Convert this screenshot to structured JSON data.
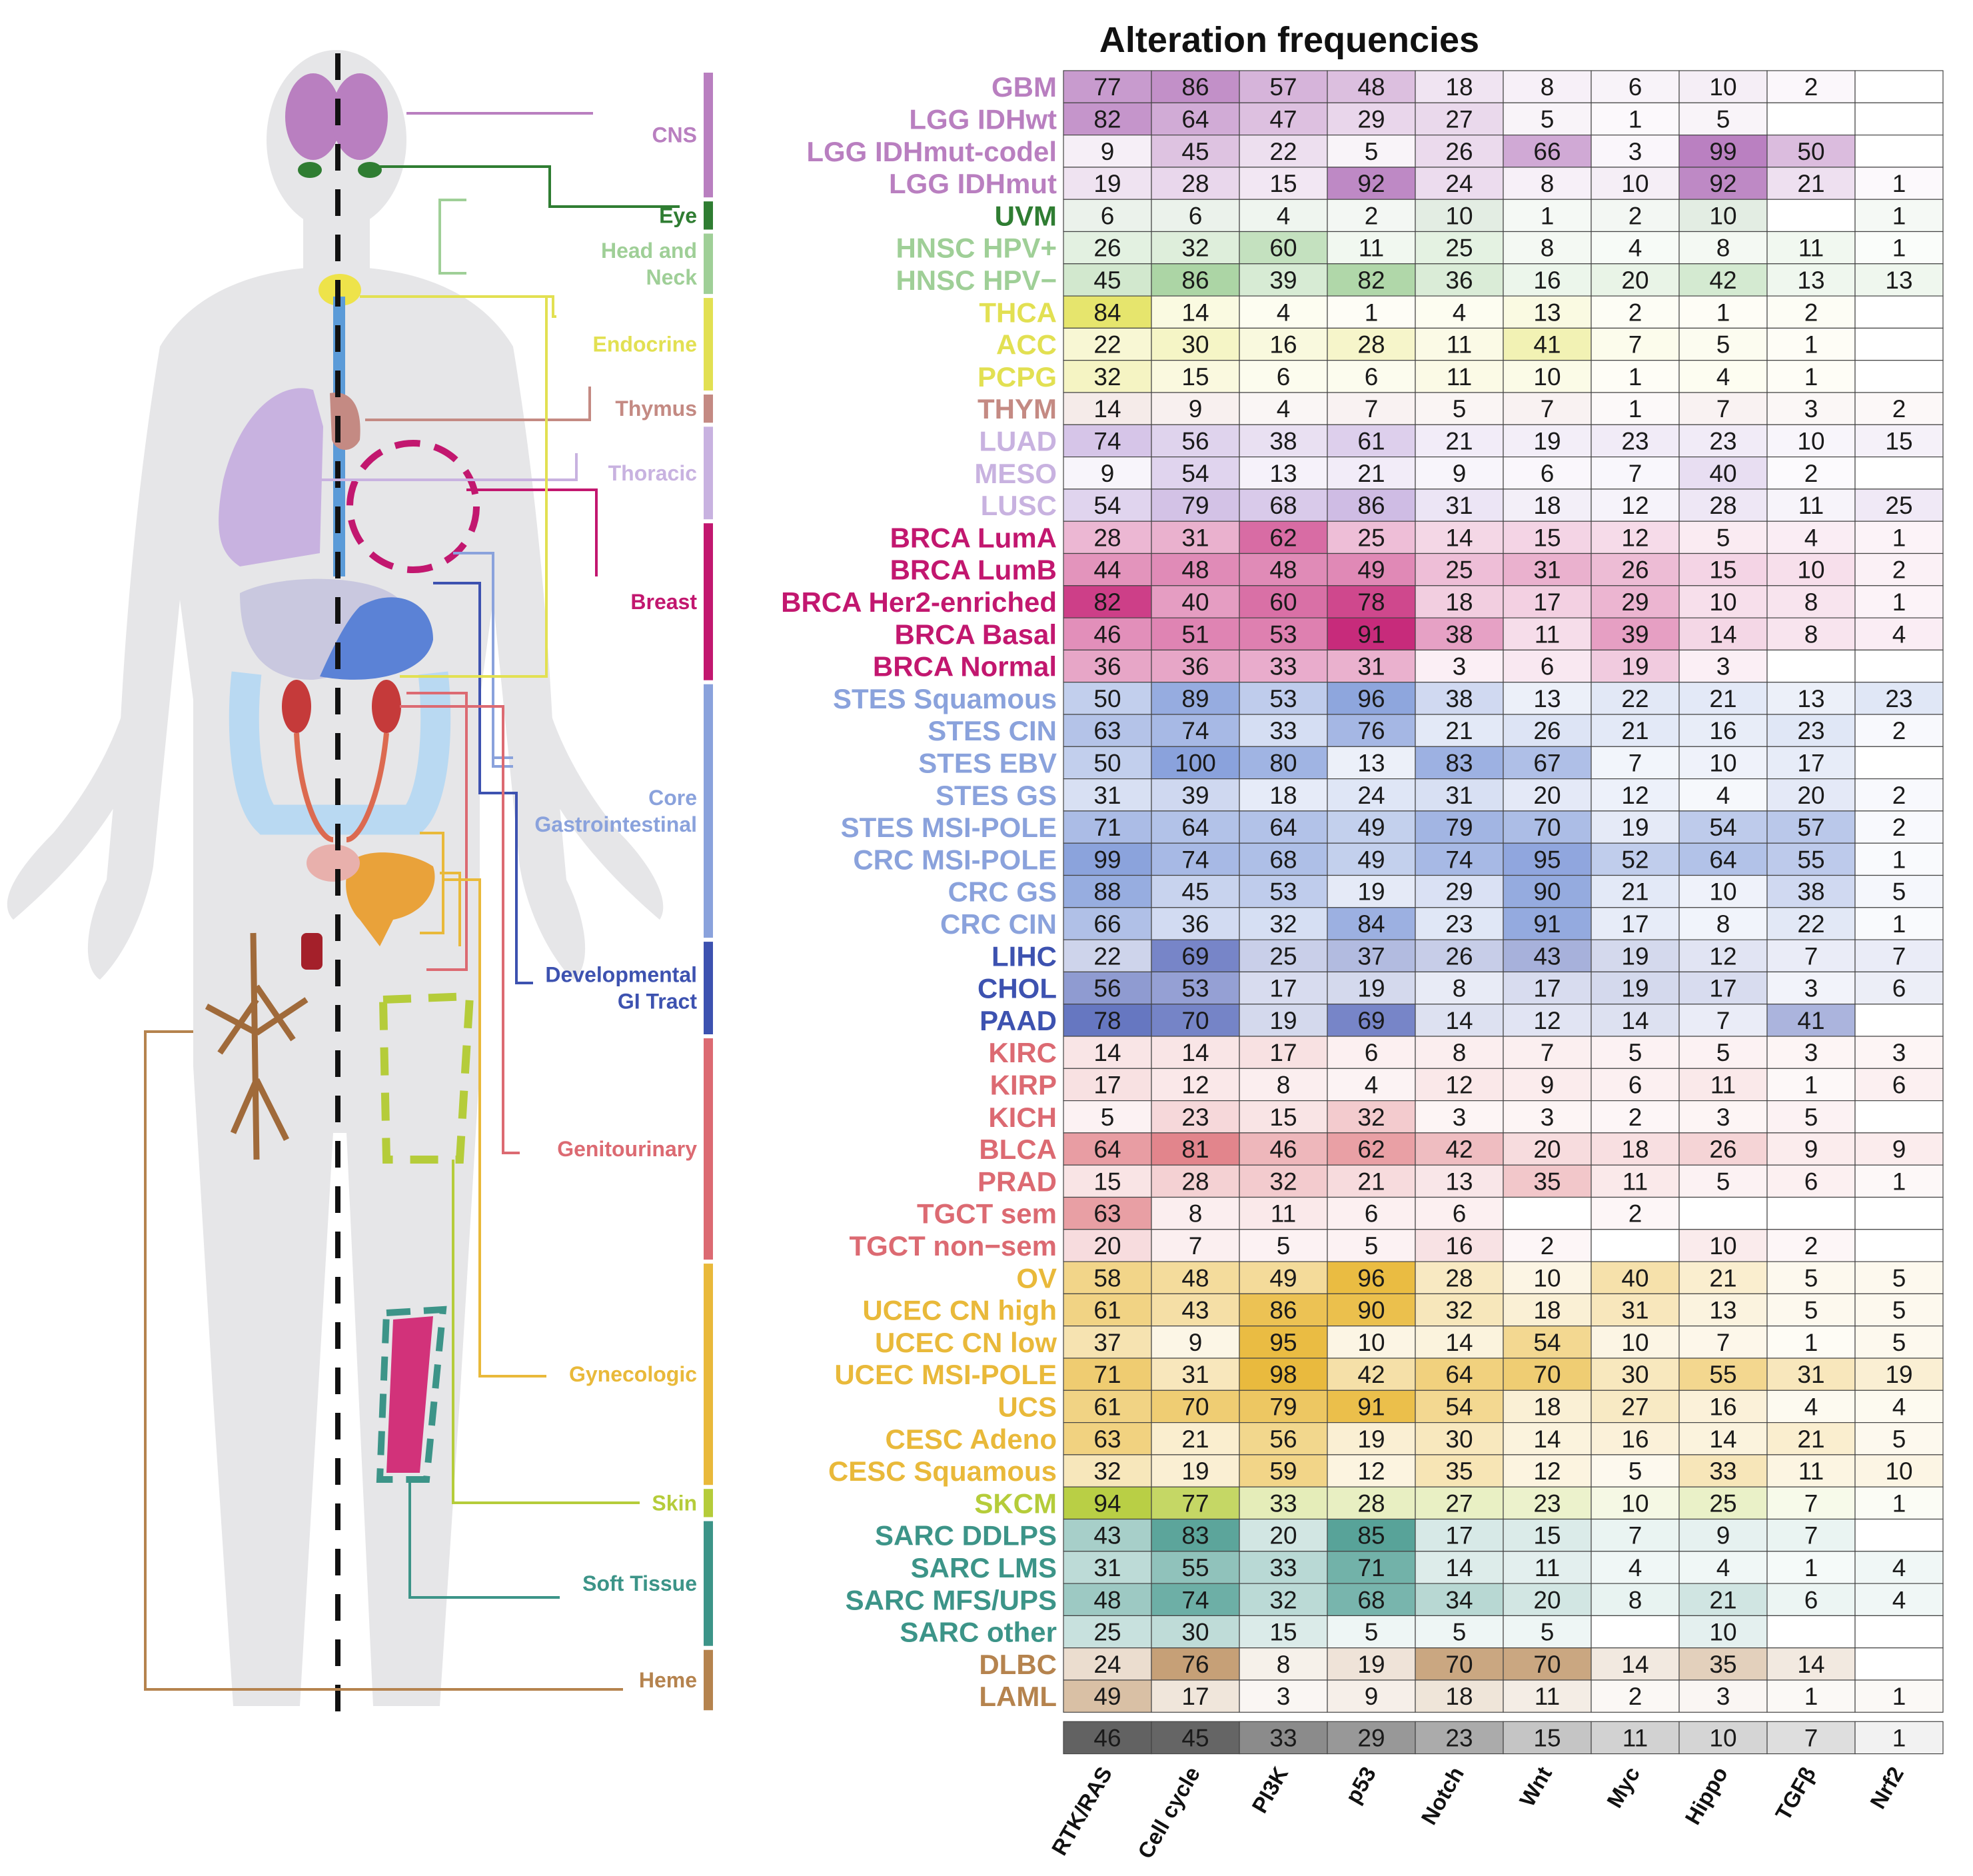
{
  "chart_data": {
    "type": "heatmap",
    "title": "Alteration frequencies",
    "columns": [
      "RTK/RAS",
      "Cell cycle",
      "PI3K",
      "p53",
      "Notch",
      "Wnt",
      "Myc",
      "Hippo",
      "TGFβ",
      "Nrf2"
    ],
    "rows": [
      {
        "name": "GBM",
        "group": "CNS",
        "values": [
          77,
          86,
          57,
          48,
          18,
          8,
          6,
          10,
          2,
          null
        ]
      },
      {
        "name": "LGG IDHwt",
        "group": "CNS",
        "values": [
          82,
          64,
          47,
          29,
          27,
          5,
          1,
          5,
          null,
          null
        ]
      },
      {
        "name": "LGG IDHmut-codel",
        "group": "CNS",
        "values": [
          9,
          45,
          22,
          5,
          26,
          66,
          3,
          99,
          50,
          null
        ]
      },
      {
        "name": "LGG IDHmut",
        "group": "CNS",
        "values": [
          19,
          28,
          15,
          92,
          24,
          8,
          10,
          92,
          21,
          1
        ]
      },
      {
        "name": "UVM",
        "group": "Eye",
        "values": [
          6,
          6,
          4,
          2,
          10,
          1,
          2,
          10,
          null,
          1
        ]
      },
      {
        "name": "HNSC HPV+",
        "group": "Head and Neck",
        "values": [
          26,
          32,
          60,
          11,
          25,
          8,
          4,
          8,
          11,
          1
        ]
      },
      {
        "name": "HNSC HPV−",
        "group": "Head and Neck",
        "values": [
          45,
          86,
          39,
          82,
          36,
          16,
          20,
          42,
          13,
          13
        ]
      },
      {
        "name": "THCA",
        "group": "Endocrine",
        "values": [
          84,
          14,
          4,
          1,
          4,
          13,
          2,
          1,
          2,
          null
        ]
      },
      {
        "name": "ACC",
        "group": "Endocrine",
        "values": [
          22,
          30,
          16,
          28,
          11,
          41,
          7,
          5,
          1,
          null
        ]
      },
      {
        "name": "PCPG",
        "group": "Endocrine",
        "values": [
          32,
          15,
          6,
          6,
          11,
          10,
          1,
          4,
          1,
          null
        ]
      },
      {
        "name": "THYM",
        "group": "Thymus",
        "values": [
          14,
          9,
          4,
          7,
          5,
          7,
          1,
          7,
          3,
          2
        ]
      },
      {
        "name": "LUAD",
        "group": "Thoracic",
        "values": [
          74,
          56,
          38,
          61,
          21,
          19,
          23,
          23,
          10,
          15
        ]
      },
      {
        "name": "MESO",
        "group": "Thoracic",
        "values": [
          9,
          54,
          13,
          21,
          9,
          6,
          7,
          40,
          2,
          null
        ]
      },
      {
        "name": "LUSC",
        "group": "Thoracic",
        "values": [
          54,
          79,
          68,
          86,
          31,
          18,
          12,
          28,
          11,
          25
        ]
      },
      {
        "name": "BRCA LumA",
        "group": "Breast",
        "values": [
          28,
          31,
          62,
          25,
          14,
          15,
          12,
          5,
          4,
          1
        ]
      },
      {
        "name": "BRCA LumB",
        "group": "Breast",
        "values": [
          44,
          48,
          48,
          49,
          25,
          31,
          26,
          15,
          10,
          2
        ]
      },
      {
        "name": "BRCA Her2-enriched",
        "group": "Breast",
        "values": [
          82,
          40,
          60,
          78,
          18,
          17,
          29,
          10,
          8,
          1
        ]
      },
      {
        "name": "BRCA Basal",
        "group": "Breast",
        "values": [
          46,
          51,
          53,
          91,
          38,
          11,
          39,
          14,
          8,
          4
        ]
      },
      {
        "name": "BRCA Normal",
        "group": "Breast",
        "values": [
          36,
          36,
          33,
          31,
          3,
          6,
          19,
          3,
          null,
          null
        ]
      },
      {
        "name": "STES Squamous",
        "group": "Core Gastrointestinal",
        "values": [
          50,
          89,
          53,
          96,
          38,
          13,
          22,
          21,
          13,
          23
        ]
      },
      {
        "name": "STES CIN",
        "group": "Core Gastrointestinal",
        "values": [
          63,
          74,
          33,
          76,
          21,
          26,
          21,
          16,
          23,
          2
        ]
      },
      {
        "name": "STES EBV",
        "group": "Core Gastrointestinal",
        "values": [
          50,
          100,
          80,
          13,
          83,
          67,
          7,
          10,
          17,
          null
        ]
      },
      {
        "name": "STES GS",
        "group": "Core Gastrointestinal",
        "values": [
          31,
          39,
          18,
          24,
          31,
          20,
          12,
          4,
          20,
          2
        ]
      },
      {
        "name": "STES MSI-POLE",
        "group": "Core Gastrointestinal",
        "values": [
          71,
          64,
          64,
          49,
          79,
          70,
          19,
          54,
          57,
          2
        ]
      },
      {
        "name": "CRC MSI-POLE",
        "group": "Core Gastrointestinal",
        "values": [
          99,
          74,
          68,
          49,
          74,
          95,
          52,
          64,
          55,
          1
        ]
      },
      {
        "name": "CRC GS",
        "group": "Core Gastrointestinal",
        "values": [
          88,
          45,
          53,
          19,
          29,
          90,
          21,
          10,
          38,
          5
        ]
      },
      {
        "name": "CRC CIN",
        "group": "Core Gastrointestinal",
        "values": [
          66,
          36,
          32,
          84,
          23,
          91,
          17,
          8,
          22,
          1
        ]
      },
      {
        "name": "LIHC",
        "group": "Developmental GI Tract",
        "values": [
          22,
          69,
          25,
          37,
          26,
          43,
          19,
          12,
          7,
          7
        ]
      },
      {
        "name": "CHOL",
        "group": "Developmental GI Tract",
        "values": [
          56,
          53,
          17,
          19,
          8,
          17,
          19,
          17,
          3,
          6
        ]
      },
      {
        "name": "PAAD",
        "group": "Developmental GI Tract",
        "values": [
          78,
          70,
          19,
          69,
          14,
          12,
          14,
          7,
          41,
          null
        ]
      },
      {
        "name": "KIRC",
        "group": "Genitourinary",
        "values": [
          14,
          14,
          17,
          6,
          8,
          7,
          5,
          5,
          3,
          3
        ]
      },
      {
        "name": "KIRP",
        "group": "Genitourinary",
        "values": [
          17,
          12,
          8,
          4,
          12,
          9,
          6,
          11,
          1,
          6
        ]
      },
      {
        "name": "KICH",
        "group": "Genitourinary",
        "values": [
          5,
          23,
          15,
          32,
          3,
          3,
          2,
          3,
          5,
          null
        ]
      },
      {
        "name": "BLCA",
        "group": "Genitourinary",
        "values": [
          64,
          81,
          46,
          62,
          42,
          20,
          18,
          26,
          9,
          9
        ]
      },
      {
        "name": "PRAD",
        "group": "Genitourinary",
        "values": [
          15,
          28,
          32,
          21,
          13,
          35,
          11,
          5,
          6,
          1
        ]
      },
      {
        "name": "TGCT sem",
        "group": "Genitourinary",
        "values": [
          63,
          8,
          11,
          6,
          6,
          null,
          2,
          null,
          null,
          null
        ]
      },
      {
        "name": "TGCT non−sem",
        "group": "Genitourinary",
        "values": [
          20,
          7,
          5,
          5,
          16,
          2,
          null,
          10,
          2,
          null
        ]
      },
      {
        "name": "OV",
        "group": "Gynecologic",
        "values": [
          58,
          48,
          49,
          96,
          28,
          10,
          40,
          21,
          5,
          5
        ]
      },
      {
        "name": "UCEC CN high",
        "group": "Gynecologic",
        "values": [
          61,
          43,
          86,
          90,
          32,
          18,
          31,
          13,
          5,
          5
        ]
      },
      {
        "name": "UCEC CN low",
        "group": "Gynecologic",
        "values": [
          37,
          9,
          95,
          10,
          14,
          54,
          10,
          7,
          1,
          5
        ]
      },
      {
        "name": "UCEC MSI-POLE",
        "group": "Gynecologic",
        "values": [
          71,
          31,
          98,
          42,
          64,
          70,
          30,
          55,
          31,
          19
        ]
      },
      {
        "name": "UCS",
        "group": "Gynecologic",
        "values": [
          61,
          70,
          79,
          91,
          54,
          18,
          27,
          16,
          4,
          4
        ]
      },
      {
        "name": "CESC Adeno",
        "group": "Gynecologic",
        "values": [
          63,
          21,
          56,
          19,
          30,
          14,
          16,
          14,
          21,
          5
        ]
      },
      {
        "name": "CESC Squamous",
        "group": "Gynecologic",
        "values": [
          32,
          19,
          59,
          12,
          35,
          12,
          5,
          33,
          11,
          10
        ]
      },
      {
        "name": "SKCM",
        "group": "Skin",
        "values": [
          94,
          77,
          33,
          28,
          27,
          23,
          10,
          25,
          7,
          1
        ]
      },
      {
        "name": "SARC DDLPS",
        "group": "Soft Tissue",
        "values": [
          43,
          83,
          20,
          85,
          17,
          15,
          7,
          9,
          7,
          null
        ]
      },
      {
        "name": "SARC LMS",
        "group": "Soft Tissue",
        "values": [
          31,
          55,
          33,
          71,
          14,
          11,
          4,
          4,
          1,
          4
        ]
      },
      {
        "name": "SARC MFS/UPS",
        "group": "Soft Tissue",
        "values": [
          48,
          74,
          32,
          68,
          34,
          20,
          8,
          21,
          6,
          4
        ]
      },
      {
        "name": "SARC other",
        "group": "Soft Tissue",
        "values": [
          25,
          30,
          15,
          5,
          5,
          5,
          null,
          10,
          null,
          null
        ]
      },
      {
        "name": "DLBC",
        "group": "Heme",
        "values": [
          24,
          76,
          8,
          19,
          70,
          70,
          14,
          35,
          14,
          null
        ]
      },
      {
        "name": "LAML",
        "group": "Heme",
        "values": [
          49,
          17,
          3,
          9,
          18,
          11,
          2,
          3,
          1,
          1
        ]
      }
    ],
    "summary_row": [
      46,
      45,
      33,
      29,
      23,
      15,
      11,
      10,
      7,
      1
    ],
    "value_range": [
      0,
      100
    ],
    "groups": [
      {
        "name": "CNS",
        "label_lines": [
          "CNS"
        ],
        "color": "#b97fc0",
        "rows": 4
      },
      {
        "name": "Eye",
        "label_lines": [
          "Eye"
        ],
        "color": "#2f7d32",
        "rows": 1
      },
      {
        "name": "Head and Neck",
        "label_lines": [
          "Head and",
          "Neck"
        ],
        "color": "#9fcf97",
        "rows": 2
      },
      {
        "name": "Endocrine",
        "label_lines": [
          "Endocrine"
        ],
        "color": "#e2e052",
        "rows": 3
      },
      {
        "name": "Thymus",
        "label_lines": [
          "Thymus"
        ],
        "color": "#c48a83",
        "rows": 1
      },
      {
        "name": "Thoracic",
        "label_lines": [
          "Thoracic"
        ],
        "color": "#c8b2e0",
        "rows": 3
      },
      {
        "name": "Breast",
        "label_lines": [
          "Breast"
        ],
        "color": "#c2176f",
        "rows": 5
      },
      {
        "name": "Core Gastrointestinal",
        "label_lines": [
          "Core",
          "Gastrointestinal"
        ],
        "color": "#8aa2dc",
        "rows": 8
      },
      {
        "name": "Developmental GI Tract",
        "label_lines": [
          "Developmental",
          "GI Tract"
        ],
        "color": "#3d52b0",
        "rows": 3
      },
      {
        "name": "Genitourinary",
        "label_lines": [
          "Genitourinary"
        ],
        "color": "#dc6a72",
        "rows": 7
      },
      {
        "name": "Gynecologic",
        "label_lines": [
          "Gynecologic"
        ],
        "color": "#e9b93a",
        "rows": 7
      },
      {
        "name": "Skin",
        "label_lines": [
          "Skin"
        ],
        "color": "#b5cc3a",
        "rows": 1
      },
      {
        "name": "Soft Tissue",
        "label_lines": [
          "Soft Tissue"
        ],
        "color": "#3c9488",
        "rows": 4
      },
      {
        "name": "Heme",
        "label_lines": [
          "Heme"
        ],
        "color": "#b5834e",
        "rows": 2
      }
    ],
    "summary_color": "#555555"
  }
}
